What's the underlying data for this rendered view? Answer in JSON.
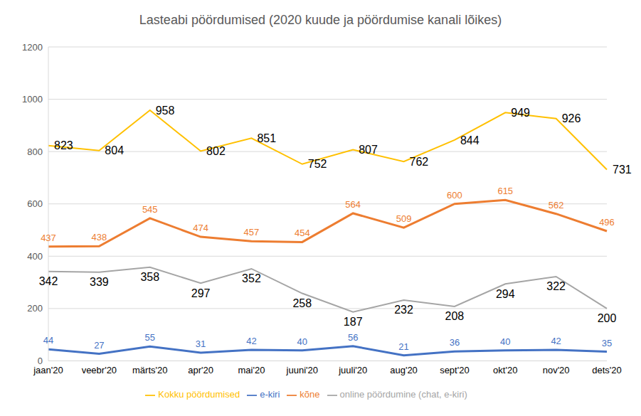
{
  "chart_data": {
    "type": "line",
    "title": "Lasteabi pöördumised (2020 kuude ja pöördumise kanali lõikes)",
    "categories": [
      "jaan'20",
      "veebr'20",
      "märts'20",
      "apr'20",
      "mai'20",
      "juuni'20",
      "juuli'20",
      "aug'20",
      "sept'20",
      "okt'20",
      "nov'20",
      "dets'20"
    ],
    "series": [
      {
        "name": "e-kiri",
        "color": "#4472c4",
        "values": [
          44,
          27,
          55,
          31,
          42,
          40,
          56,
          21,
          36,
          40,
          42,
          35
        ]
      },
      {
        "name": "kõne",
        "color": "#ed7d31",
        "values": [
          437,
          438,
          545,
          474,
          457,
          454,
          564,
          509,
          600,
          615,
          562,
          496
        ]
      },
      {
        "name": "online pöördumine (chat, e-kiri)",
        "color": "#a5a5a5",
        "values": [
          342,
          339,
          358,
          297,
          352,
          258,
          187,
          232,
          208,
          294,
          322,
          200
        ]
      },
      {
        "name": "Kokku pöördumised",
        "color": "#ffc000",
        "values": [
          823,
          804,
          958,
          802,
          851,
          752,
          807,
          762,
          844,
          949,
          926,
          731
        ]
      }
    ],
    "ylim": [
      0,
      1200
    ],
    "yticks": [
      0,
      200,
      400,
      600,
      800,
      1000,
      1200
    ],
    "grid": true,
    "legend": "bottom",
    "data_labels": true,
    "marker": "none"
  }
}
